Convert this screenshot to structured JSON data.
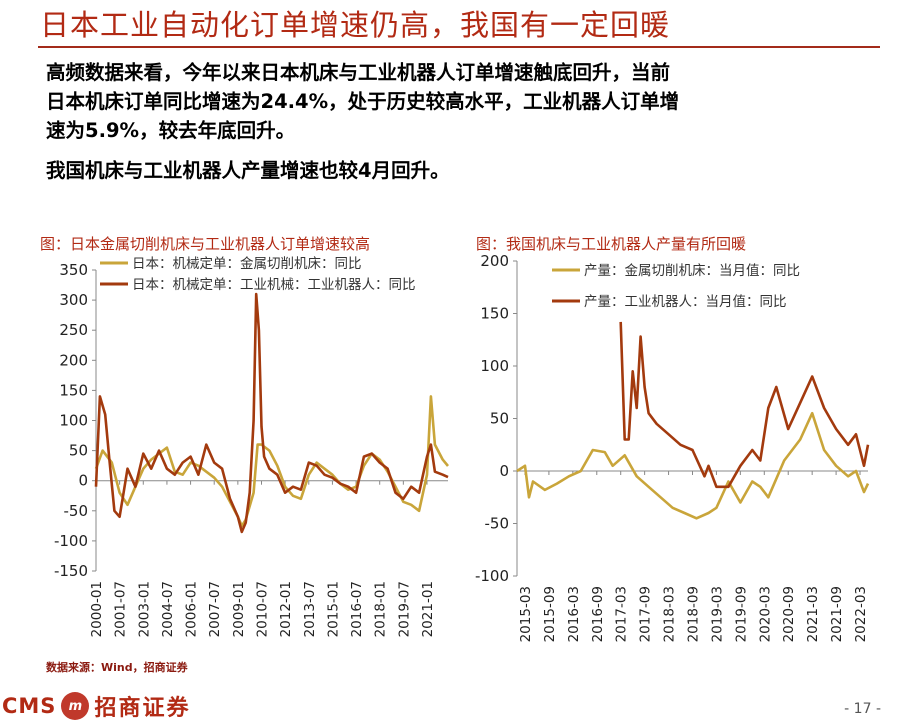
{
  "header": {
    "title": "日本工业自动化订单增速仍高，我国有一定回暖"
  },
  "body": {
    "para1_line1": "高频数据来看，今年以来日本机床与工业机器人订单增速触底回升，当前",
    "para1_line2": "日本机床订单同比增速为24.4%，处于历史较高水平，工业机器人订单增",
    "para1_line3": "速为5.9%，较去年底回升。",
    "para2": "我国机床与工业机器人产量增速也较4月回升。"
  },
  "captions": {
    "left": "图：日本金属切削机床与工业机器人订单增速较高",
    "right": "图：我国机床与工业机器人产量有所回暖"
  },
  "footer": {
    "source": "数据来源：Wind，招商证券",
    "logo_cms": "CMS",
    "logo_emblem": "m",
    "logo_cn": "招商证券",
    "page": "- 17 -"
  },
  "colors": {
    "accent": "#b22a14",
    "gold": "#c9a53a",
    "dark_red": "#a33a0e"
  },
  "chart_data": [
    {
      "type": "line",
      "ylim": [
        -150,
        350
      ],
      "yticks": [
        -150,
        -100,
        -50,
        0,
        50,
        100,
        150,
        200,
        250,
        300,
        350
      ],
      "xticks": [
        "2000-01",
        "2001-07",
        "2003-01",
        "2004-07",
        "2006-01",
        "2007-07",
        "2009-01",
        "2010-07",
        "2012-01",
        "2013-07",
        "2015-01",
        "2016-07",
        "2018-01",
        "2019-07",
        "2021-01"
      ],
      "xlim": [
        "2000-01",
        "2022-05"
      ],
      "series": [
        {
          "name": "日本：机械定单：金属切削机床：同比",
          "color": "#c9a53a",
          "x": [
            "2000-01",
            "2000-06",
            "2001-01",
            "2001-07",
            "2002-01",
            "2002-07",
            "2003-01",
            "2003-07",
            "2004-01",
            "2004-07",
            "2005-01",
            "2005-07",
            "2006-01",
            "2006-07",
            "2007-01",
            "2007-07",
            "2008-01",
            "2008-07",
            "2009-01",
            "2009-04",
            "2009-07",
            "2010-01",
            "2010-04",
            "2010-07",
            "2011-01",
            "2011-07",
            "2012-01",
            "2012-07",
            "2013-01",
            "2013-07",
            "2014-01",
            "2014-07",
            "2015-01",
            "2015-07",
            "2016-01",
            "2016-07",
            "2017-01",
            "2017-07",
            "2018-01",
            "2018-07",
            "2019-01",
            "2019-07",
            "2020-01",
            "2020-07",
            "2021-01",
            "2021-04",
            "2021-07",
            "2022-01",
            "2022-05"
          ],
          "values": [
            20,
            50,
            30,
            -20,
            -40,
            -10,
            20,
            35,
            45,
            55,
            15,
            10,
            30,
            25,
            15,
            5,
            -10,
            -35,
            -60,
            -75,
            -65,
            -20,
            60,
            60,
            50,
            25,
            -10,
            -25,
            -30,
            10,
            30,
            20,
            10,
            -5,
            -15,
            -10,
            25,
            45,
            35,
            15,
            -10,
            -35,
            -40,
            -50,
            10,
            140,
            60,
            35,
            24.4
          ]
        },
        {
          "name": "日本：机械定单：工业机械：工业机器人：同比",
          "color": "#a33a0e",
          "x": [
            "2000-01",
            "2000-04",
            "2000-08",
            "2000-11",
            "2001-03",
            "2001-07",
            "2001-10",
            "2002-01",
            "2002-07",
            "2003-01",
            "2003-07",
            "2004-01",
            "2004-07",
            "2005-01",
            "2005-07",
            "2006-01",
            "2006-07",
            "2007-01",
            "2007-07",
            "2008-01",
            "2008-07",
            "2009-01",
            "2009-04",
            "2009-07",
            "2009-10",
            "2010-01",
            "2010-03",
            "2010-05",
            "2010-07",
            "2010-09",
            "2011-01",
            "2011-07",
            "2012-01",
            "2012-07",
            "2013-01",
            "2013-07",
            "2014-01",
            "2014-07",
            "2015-01",
            "2015-07",
            "2016-01",
            "2016-07",
            "2017-01",
            "2017-07",
            "2018-01",
            "2018-07",
            "2019-01",
            "2019-07",
            "2020-01",
            "2020-07",
            "2021-01",
            "2021-04",
            "2021-07",
            "2022-01",
            "2022-05"
          ],
          "values": [
            -10,
            140,
            110,
            40,
            -50,
            -60,
            -20,
            20,
            -10,
            45,
            20,
            50,
            20,
            10,
            30,
            40,
            10,
            60,
            30,
            20,
            -30,
            -60,
            -85,
            -70,
            -20,
            100,
            310,
            250,
            90,
            40,
            20,
            10,
            -20,
            -10,
            -15,
            30,
            25,
            10,
            5,
            -5,
            -10,
            -20,
            40,
            45,
            30,
            20,
            -20,
            -30,
            -10,
            -20,
            40,
            60,
            15,
            10,
            5.9
          ]
        }
      ]
    },
    {
      "type": "line",
      "ylim": [
        -100,
        200
      ],
      "yticks": [
        -100,
        -50,
        0,
        50,
        100,
        150,
        200
      ],
      "xticks": [
        "2015-03",
        "2015-09",
        "2016-03",
        "2016-09",
        "2017-03",
        "2017-09",
        "2018-03",
        "2018-09",
        "2019-03",
        "2019-09",
        "2020-03",
        "2020-09",
        "2021-03",
        "2021-09",
        "2022-03"
      ],
      "xlim": [
        "2015-01",
        "2022-05"
      ],
      "series": [
        {
          "name": "产量：金属切削机床：当月值：同比",
          "color": "#c9a53a",
          "x": [
            "2015-01",
            "2015-03",
            "2015-04",
            "2015-05",
            "2015-08",
            "2015-11",
            "2016-02",
            "2016-05",
            "2016-08",
            "2016-11",
            "2017-01",
            "2017-04",
            "2017-07",
            "2017-10",
            "2018-01",
            "2018-04",
            "2018-07",
            "2018-10",
            "2019-01",
            "2019-03",
            "2019-06",
            "2019-09",
            "2019-12",
            "2020-02",
            "2020-04",
            "2020-08",
            "2020-12",
            "2021-03",
            "2021-06",
            "2021-09",
            "2021-12",
            "2022-02",
            "2022-04",
            "2022-05"
          ],
          "values": [
            0,
            5,
            -25,
            -10,
            -18,
            -12,
            -5,
            0,
            20,
            18,
            5,
            15,
            -5,
            -15,
            -25,
            -35,
            -40,
            -45,
            -40,
            -35,
            -10,
            -30,
            -10,
            -15,
            -25,
            10,
            30,
            55,
            20,
            5,
            -5,
            0,
            -20,
            -12
          ]
        },
        {
          "name": "产量：工业机器人：当月值：同比",
          "color": "#a33a0e",
          "x": [
            "2017-03",
            "2017-04",
            "2017-05",
            "2017-06",
            "2017-07",
            "2017-08",
            "2017-09",
            "2017-10",
            "2017-12",
            "2018-03",
            "2018-06",
            "2018-09",
            "2018-12",
            "2019-01",
            "2019-03",
            "2019-06",
            "2019-09",
            "2019-12",
            "2020-02",
            "2020-04",
            "2020-06",
            "2020-09",
            "2020-12",
            "2021-03",
            "2021-06",
            "2021-09",
            "2021-12",
            "2022-02",
            "2022-04",
            "2022-05"
          ],
          "values": [
            142,
            30,
            30,
            95,
            60,
            128,
            80,
            55,
            45,
            35,
            25,
            20,
            -5,
            5,
            -15,
            -15,
            5,
            20,
            10,
            60,
            80,
            40,
            65,
            90,
            60,
            40,
            25,
            35,
            5,
            25
          ]
        }
      ]
    }
  ]
}
